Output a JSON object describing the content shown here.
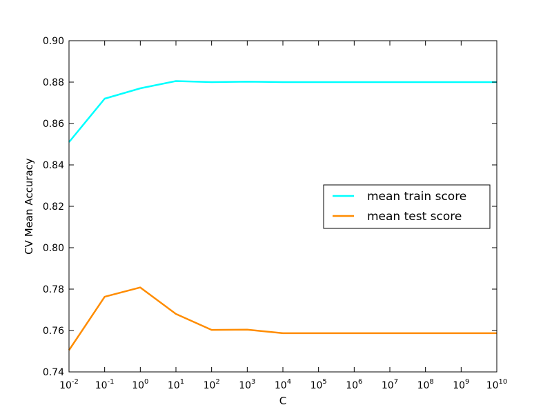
{
  "chart_data": {
    "type": "line",
    "xlabel": "C",
    "ylabel": "CV Mean Accuracy",
    "xscale": "log",
    "xlim": [
      0.01,
      10000000000
    ],
    "ylim": [
      0.74,
      0.9
    ],
    "x_tick_labels": [
      {
        "base": "10",
        "exp": "-2"
      },
      {
        "base": "10",
        "exp": "-1"
      },
      {
        "base": "10",
        "exp": "0"
      },
      {
        "base": "10",
        "exp": "1"
      },
      {
        "base": "10",
        "exp": "2"
      },
      {
        "base": "10",
        "exp": "3"
      },
      {
        "base": "10",
        "exp": "4"
      },
      {
        "base": "10",
        "exp": "5"
      },
      {
        "base": "10",
        "exp": "6"
      },
      {
        "base": "10",
        "exp": "7"
      },
      {
        "base": "10",
        "exp": "8"
      },
      {
        "base": "10",
        "exp": "9"
      },
      {
        "base": "10",
        "exp": "10"
      }
    ],
    "y_tick_labels": [
      "0.74",
      "0.76",
      "0.78",
      "0.80",
      "0.82",
      "0.84",
      "0.86",
      "0.88",
      "0.90"
    ],
    "x": [
      0.01,
      0.1,
      1,
      10,
      100,
      1000,
      10000,
      100000,
      1000000,
      10000000,
      100000000,
      1000000000,
      10000000000
    ],
    "series": [
      {
        "name": "mean train score",
        "color": "#00ffff",
        "values": [
          0.851,
          0.872,
          0.877,
          0.8805,
          0.88,
          0.8802,
          0.88,
          0.88,
          0.88,
          0.88,
          0.88,
          0.88,
          0.88
        ]
      },
      {
        "name": "mean test score",
        "color": "#ff8c00",
        "values": [
          0.7505,
          0.7763,
          0.7808,
          0.768,
          0.7603,
          0.7604,
          0.7587,
          0.7587,
          0.7587,
          0.7587,
          0.7587,
          0.7587,
          0.7587
        ]
      }
    ],
    "legend_position": "center-right",
    "grid": false
  }
}
